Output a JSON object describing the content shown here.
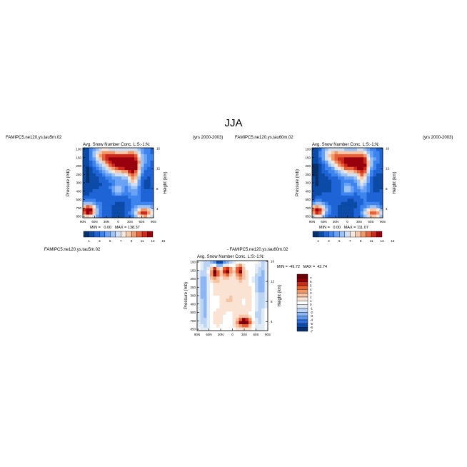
{
  "figure": {
    "main_title": "JJA",
    "top_left_run": "FAMIPC5.ne120.ys.tau5m.02",
    "top_right_run": "FAMIPC5.ne120.ys.tau60m.02",
    "years": "(yrs 2000-2003)",
    "diff_label_left": "FAMIPC5.ne120.ys.tau5m.02",
    "diff_label_right": "- FAMIPC5.ne120.ys.tau60m.02"
  },
  "colors": {
    "main_scale": [
      "#08306b",
      "#0b4aa6",
      "#1e64d6",
      "#3d84ef",
      "#6aa2f5",
      "#9cc2f7",
      "#cfe0f5",
      "#f8e8dc",
      "#f5c7a8",
      "#f09a6c",
      "#e6603a",
      "#cc2a1c",
      "#99000d"
    ],
    "diff_scale": [
      "#08306b",
      "#0b4aa6",
      "#2b6fe0",
      "#5b95f2",
      "#8db6f4",
      "#bcd4f4",
      "#e1ebf6",
      "#ffffff",
      "#fae3d3",
      "#f6c3a5",
      "#f0976a",
      "#e56134",
      "#c92a1a",
      "#8c000b",
      "#6e0007"
    ]
  },
  "chart_data": [
    {
      "type": "heatmap",
      "panel": "top-left",
      "title": "Avg. Snow Number Conc. L:S:-1:N:",
      "ylabel": "Pressure (mb)",
      "ylabel_right": "Height (km)",
      "xticks": [
        "90N",
        "60N",
        "30N",
        "0",
        "30S",
        "60S",
        "90S"
      ],
      "yticks": [
        "100",
        "150",
        "200",
        "250",
        "300",
        "400",
        "500",
        "700",
        "850"
      ],
      "yticks_right": [
        "16",
        "12",
        "8",
        "4"
      ],
      "colorbar_ticks": [
        "1",
        "3",
        "5",
        "7",
        "9",
        "11",
        "13",
        "15"
      ],
      "stats": "MIN =   0.00   MAX = 138.37",
      "min": 0.0,
      "max": 138.37
    },
    {
      "type": "heatmap",
      "panel": "top-right",
      "title": "Avg. Snow Number Conc. L:S:-1:N:",
      "ylabel": "Pressure (mb)",
      "ylabel_right": "Height (km)",
      "xticks": [
        "90N",
        "60N",
        "30N",
        "0",
        "30S",
        "60S",
        "90S"
      ],
      "yticks": [
        "100",
        "150",
        "200",
        "250",
        "300",
        "400",
        "500",
        "700",
        "850"
      ],
      "yticks_right": [
        "16",
        "12",
        "8",
        "4"
      ],
      "colorbar_ticks": [
        "1",
        "3",
        "5",
        "7",
        "9",
        "11",
        "13",
        "15"
      ],
      "stats": "MIN =   0.00   MAX = 111.07",
      "min": 0.0,
      "max": 111.07
    },
    {
      "type": "heatmap",
      "panel": "difference",
      "title": "Avg. Snow Number Conc. L:S:-1:N:",
      "ylabel": "Pressure (mb)",
      "ylabel_right": "Height (km)",
      "xticks": [
        "90N",
        "60N",
        "30N",
        "0",
        "30S",
        "60S",
        "90S"
      ],
      "yticks": [
        "100",
        "150",
        "200",
        "250",
        "300",
        "400",
        "500",
        "700",
        "850"
      ],
      "yticks_right": [
        "16",
        "12",
        "8",
        "4"
      ],
      "colorbar_ticks": [
        "7",
        "6",
        "5",
        "4",
        "3",
        "2",
        "1",
        "0",
        "-1",
        "-2",
        "-3",
        "-4",
        "-5",
        "-6",
        "-7"
      ],
      "stats": "MIN = -49.72   MAX =  42.74",
      "min": -49.72,
      "max": 42.74
    }
  ]
}
